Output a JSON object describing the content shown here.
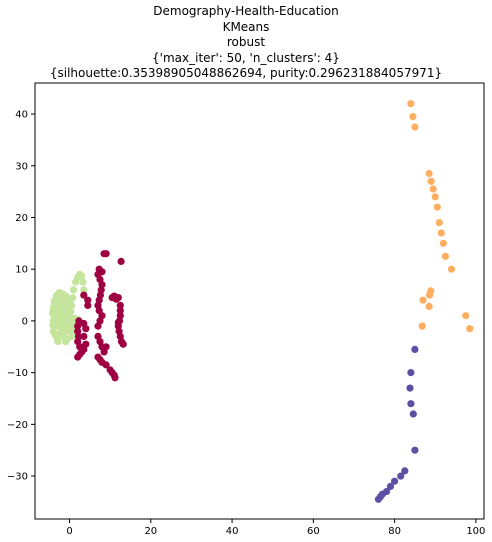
{
  "chart_data": {
    "type": "scatter",
    "title_lines": [
      "Demography-Health-Education",
      "KMeans",
      "robust",
      "{'max_iter': 50, 'n_clusters': 4}",
      "{silhouette:0.35398905048862694, purity:0.296231884057971}"
    ],
    "xlabel": "",
    "ylabel": "",
    "xlim": [
      -8.5,
      102
    ],
    "ylim": [
      -38.3,
      46
    ],
    "x_ticks": [
      0,
      20,
      40,
      60,
      80,
      100
    ],
    "y_ticks": [
      -30,
      -20,
      -10,
      0,
      10,
      20,
      30,
      40
    ],
    "grid": false,
    "legend": "none",
    "series": [
      {
        "color": "#c5e59d",
        "points": [
          [
            -4,
            0
          ],
          [
            -3.8,
            1
          ],
          [
            -3.5,
            2
          ],
          [
            -3.7,
            3
          ],
          [
            -3.4,
            4
          ],
          [
            -3,
            5
          ],
          [
            -2.5,
            5.5
          ],
          [
            -2,
            4.5
          ],
          [
            -1.5,
            3.5
          ],
          [
            -1,
            2.5
          ],
          [
            -0.5,
            1.5
          ],
          [
            -1,
            0.5
          ],
          [
            -1.5,
            -0.5
          ],
          [
            -2,
            -1.5
          ],
          [
            -2.5,
            -2.5
          ],
          [
            -3,
            -3.5
          ],
          [
            -3.5,
            -1
          ],
          [
            -4,
            -2
          ],
          [
            -4.2,
            1.5
          ],
          [
            -3.2,
            -0.3
          ],
          [
            -2.8,
            0.8
          ],
          [
            -2.2,
            2
          ],
          [
            -1.8,
            1.2
          ],
          [
            -1.2,
            -1
          ],
          [
            -0.8,
            0.3
          ],
          [
            -0.3,
            -0.5
          ],
          [
            0,
            0.8
          ],
          [
            0.3,
            1.8
          ],
          [
            0.5,
            3
          ],
          [
            0.8,
            4.5
          ],
          [
            1,
            6
          ],
          [
            1.5,
            7.5
          ],
          [
            2,
            8.5
          ],
          [
            2.5,
            9
          ],
          [
            3,
            8.7
          ],
          [
            3.3,
            7.5
          ],
          [
            3.5,
            6
          ],
          [
            1,
            -1.5
          ],
          [
            1.5,
            -2.5
          ],
          [
            0.5,
            -3
          ],
          [
            0,
            -2
          ],
          [
            -0.5,
            -3.5
          ],
          [
            -1,
            -4
          ],
          [
            -1.5,
            -3
          ],
          [
            -2,
            -2
          ],
          [
            -2.5,
            -1
          ],
          [
            -3,
            0
          ],
          [
            -3.5,
            1
          ],
          [
            -4,
            2.5
          ],
          [
            -3.8,
            3.8
          ],
          [
            -3.3,
            4.8
          ],
          [
            -2.8,
            4
          ],
          [
            -2.3,
            3
          ],
          [
            -1.8,
            0
          ],
          [
            -1.3,
            -2
          ],
          [
            -0.8,
            -1.5
          ],
          [
            -0.3,
            2
          ],
          [
            0.2,
            -1
          ],
          [
            0.6,
            0.2
          ],
          [
            1.2,
            0.5
          ],
          [
            1.6,
            -0.5
          ],
          [
            2,
            0.3
          ],
          [
            -2.6,
            5
          ],
          [
            -1.6,
            5.2
          ],
          [
            -0.9,
            4.8
          ],
          [
            -0.4,
            4
          ],
          [
            0.1,
            3.6
          ],
          [
            -4.1,
            -0.8
          ],
          [
            -3.6,
            -2.6
          ],
          [
            -2.9,
            -4
          ]
        ]
      },
      {
        "color": "#9e0142",
        "points": [
          [
            2,
            -7
          ],
          [
            2.5,
            -6.5
          ],
          [
            3,
            -6
          ],
          [
            2.5,
            -5
          ],
          [
            2,
            -4
          ],
          [
            2.2,
            -3
          ],
          [
            2,
            -2
          ],
          [
            2,
            -1
          ],
          [
            2.3,
            0
          ],
          [
            3.5,
            -0.5
          ],
          [
            4,
            -1.5
          ],
          [
            3.5,
            -3
          ],
          [
            4,
            -4.5
          ],
          [
            3.5,
            -5.5
          ],
          [
            3.5,
            5
          ],
          [
            4.5,
            4
          ],
          [
            4.5,
            3
          ],
          [
            7,
            -7
          ],
          [
            7.5,
            -7.5
          ],
          [
            8,
            -8
          ],
          [
            9,
            -8.5
          ],
          [
            10,
            -9.5
          ],
          [
            10.5,
            -10
          ],
          [
            11,
            -10.5
          ],
          [
            11.2,
            -11
          ],
          [
            7,
            -3
          ],
          [
            7.5,
            -4
          ],
          [
            8,
            -5
          ],
          [
            8.5,
            -6
          ],
          [
            9,
            -5
          ],
          [
            7,
            -1
          ],
          [
            7.5,
            0
          ],
          [
            8,
            1
          ],
          [
            7.3,
            2
          ],
          [
            7,
            3
          ],
          [
            7.3,
            4
          ],
          [
            7.6,
            5
          ],
          [
            7.8,
            6
          ],
          [
            8,
            7
          ],
          [
            7.5,
            8
          ],
          [
            7,
            9
          ],
          [
            7.3,
            10
          ],
          [
            8,
            9.5
          ],
          [
            8.5,
            13
          ],
          [
            9,
            13
          ],
          [
            10.5,
            4.5
          ],
          [
            11,
            4.8
          ],
          [
            12,
            4.5
          ],
          [
            12.5,
            3
          ],
          [
            12.5,
            2
          ],
          [
            12.5,
            1
          ],
          [
            12.3,
            0
          ],
          [
            12,
            -1
          ],
          [
            12.2,
            -2
          ],
          [
            12.5,
            -3
          ],
          [
            12.8,
            -4
          ],
          [
            13.2,
            -4.5
          ],
          [
            12.7,
            11.5
          ],
          [
            11.5,
            4.2
          ],
          [
            12,
            -0.3
          ]
        ]
      },
      {
        "color": "#fdae61",
        "points": [
          [
            84,
            42
          ],
          [
            84.5,
            39.5
          ],
          [
            85,
            37.5
          ],
          [
            88.5,
            28.5
          ],
          [
            89,
            27
          ],
          [
            89.5,
            25.5
          ],
          [
            90,
            24
          ],
          [
            90.5,
            22
          ],
          [
            91,
            19
          ],
          [
            91.5,
            17
          ],
          [
            92,
            15
          ],
          [
            92.5,
            12.5
          ],
          [
            94,
            10
          ],
          [
            87,
            4
          ],
          [
            88.5,
            2.8
          ],
          [
            88.6,
            5
          ],
          [
            88.9,
            5.8
          ],
          [
            86.8,
            -1
          ],
          [
            97.5,
            1
          ],
          [
            98.5,
            -1.5
          ]
        ]
      },
      {
        "color": "#5e4fa2",
        "points": [
          [
            85,
            -5.5
          ],
          [
            84,
            -10
          ],
          [
            83.8,
            -13
          ],
          [
            84,
            -16
          ],
          [
            84.6,
            -18
          ],
          [
            85,
            -25
          ],
          [
            76,
            -34.5
          ],
          [
            76.5,
            -34
          ],
          [
            77,
            -33.5
          ],
          [
            78,
            -33
          ],
          [
            79,
            -32
          ],
          [
            80,
            -31
          ],
          [
            81.5,
            -30
          ],
          [
            82.5,
            -29
          ]
        ]
      }
    ]
  }
}
